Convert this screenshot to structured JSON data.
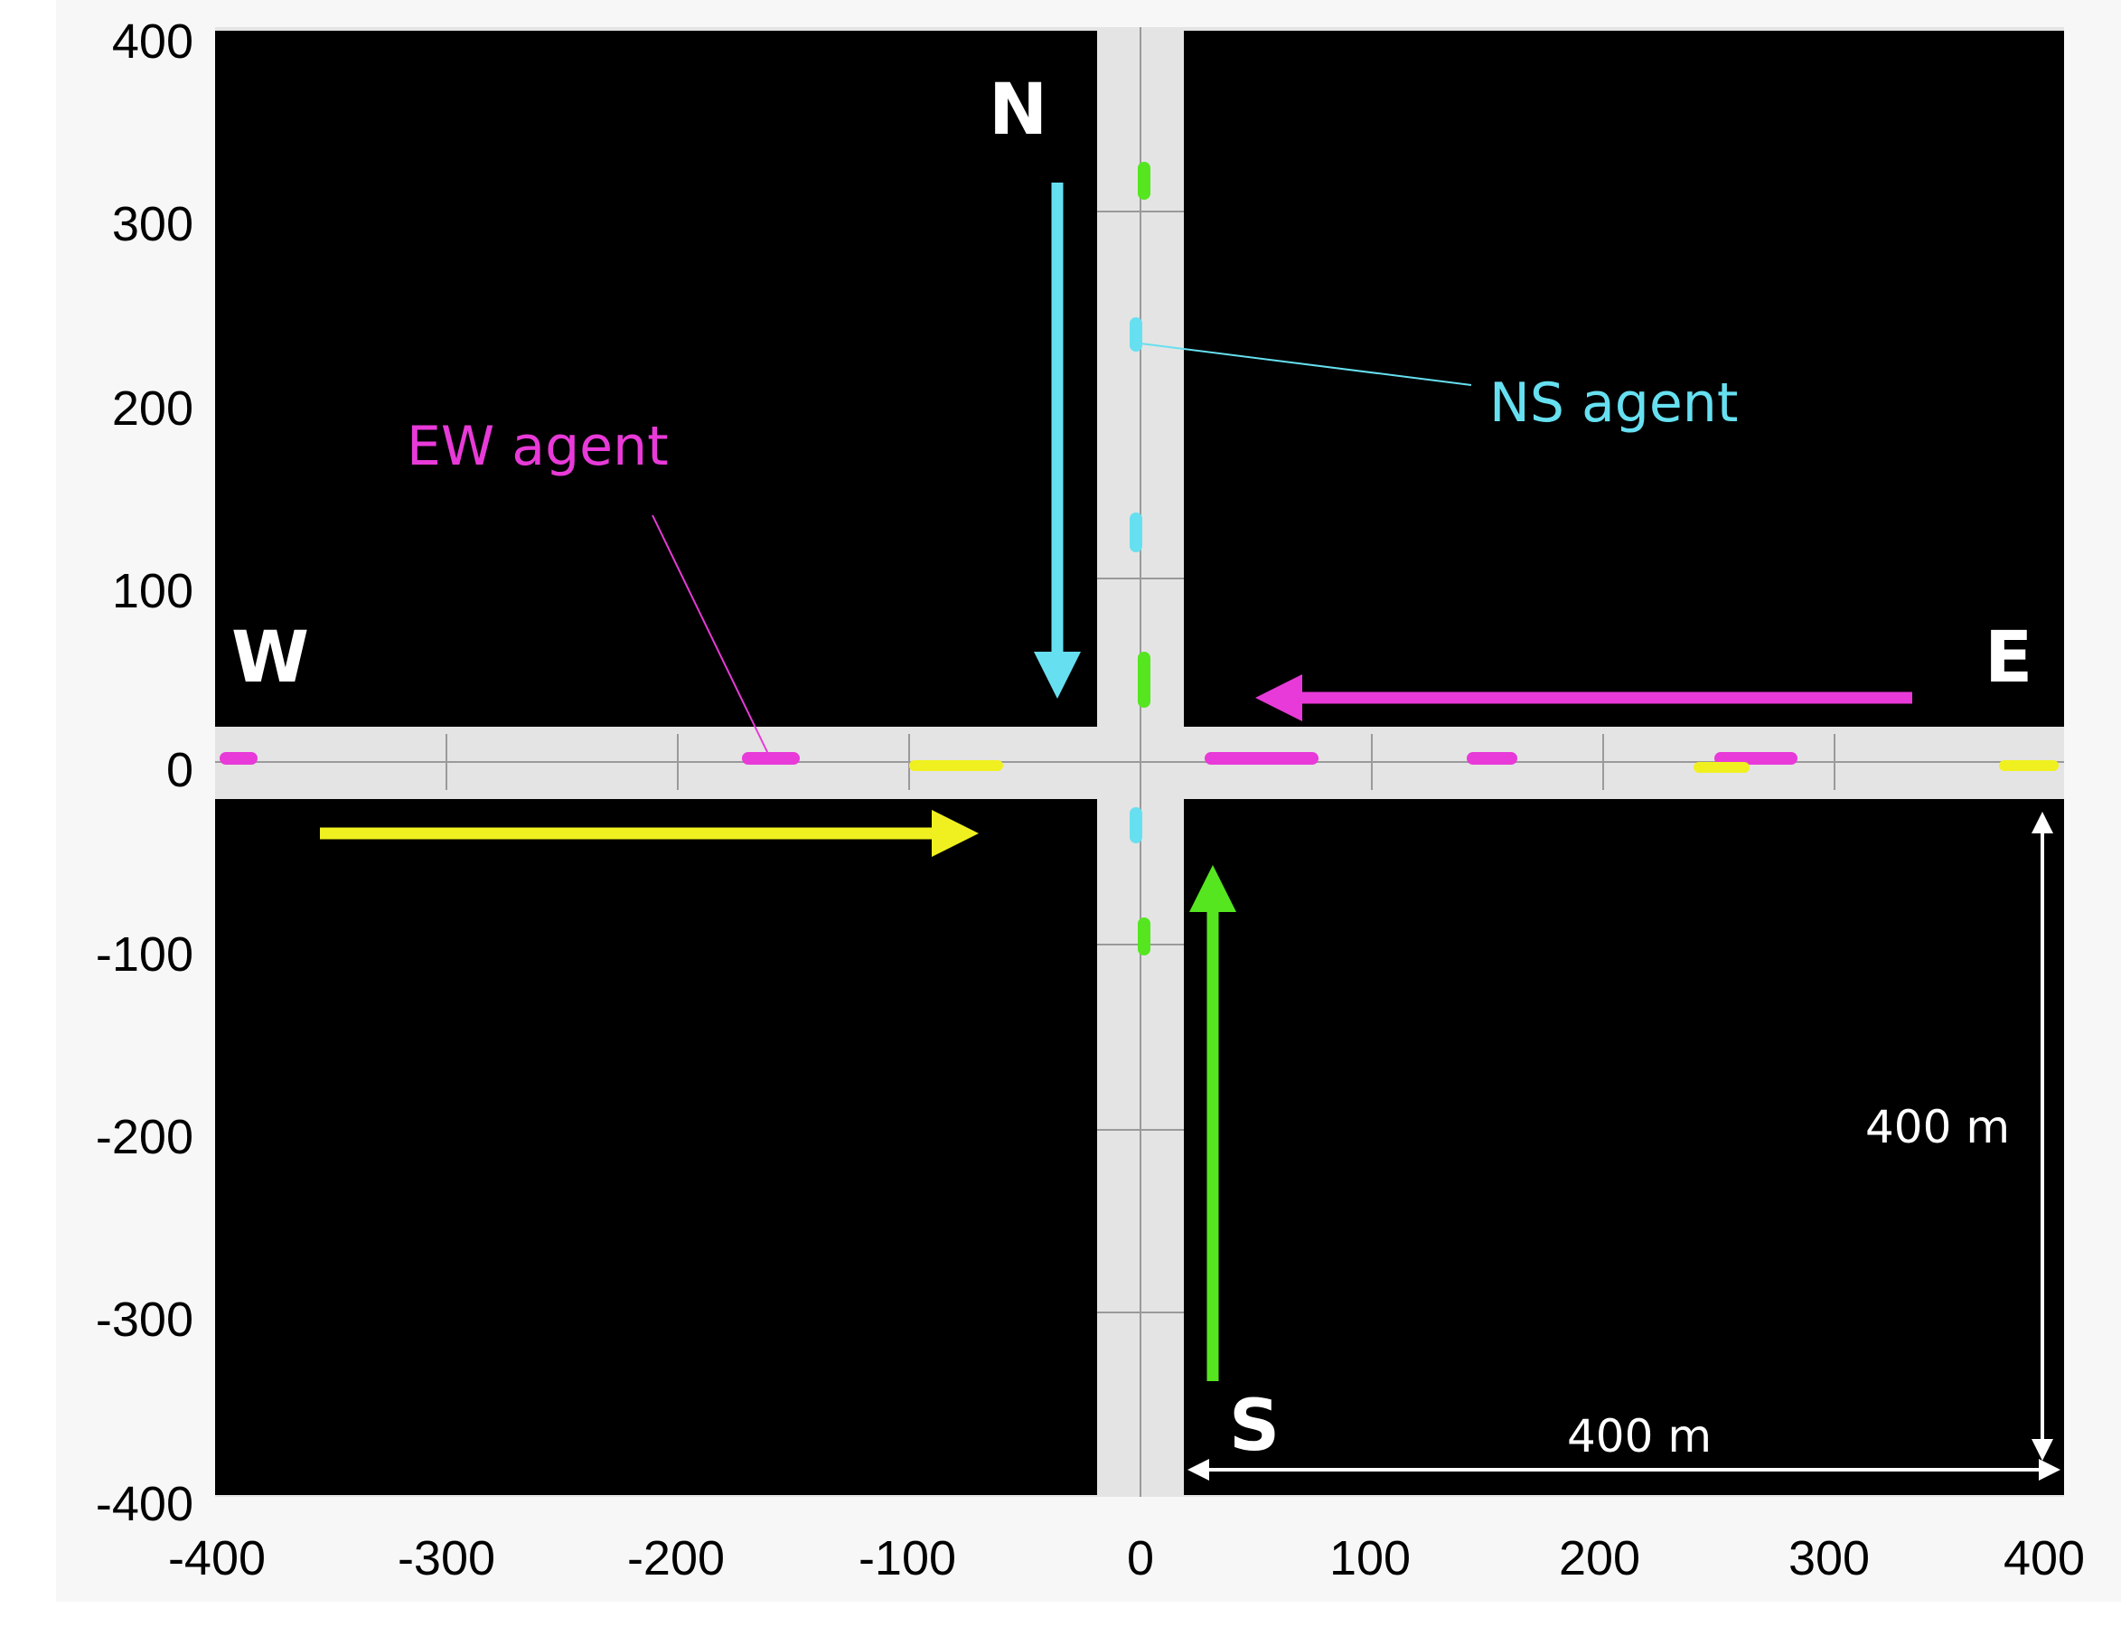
{
  "y_ticks": [
    "400",
    "300",
    "200",
    "100",
    "0",
    "-100",
    "-200",
    "-300",
    "-400"
  ],
  "x_ticks": [
    "-400",
    "-300",
    "-200",
    "-100",
    "0",
    "100",
    "200",
    "300",
    "400"
  ],
  "directions": {
    "north": "N",
    "south": "S",
    "east": "E",
    "west": "W"
  },
  "labels": {
    "ns_agent": "NS agent",
    "ew_agent": "EW agent"
  },
  "dimensions": {
    "vertical": "400 m",
    "horizontal": "400 m"
  },
  "colors": {
    "block": "#000000",
    "road": "#e4e4e4",
    "ns_agent": "#66e0f0",
    "ew_agent": "#e83ad8",
    "southbound_flow": "#66e0f0",
    "northbound_flow": "#55e620",
    "eastbound_flow": "#f0f020",
    "westbound_flow": "#e83ad8"
  }
}
